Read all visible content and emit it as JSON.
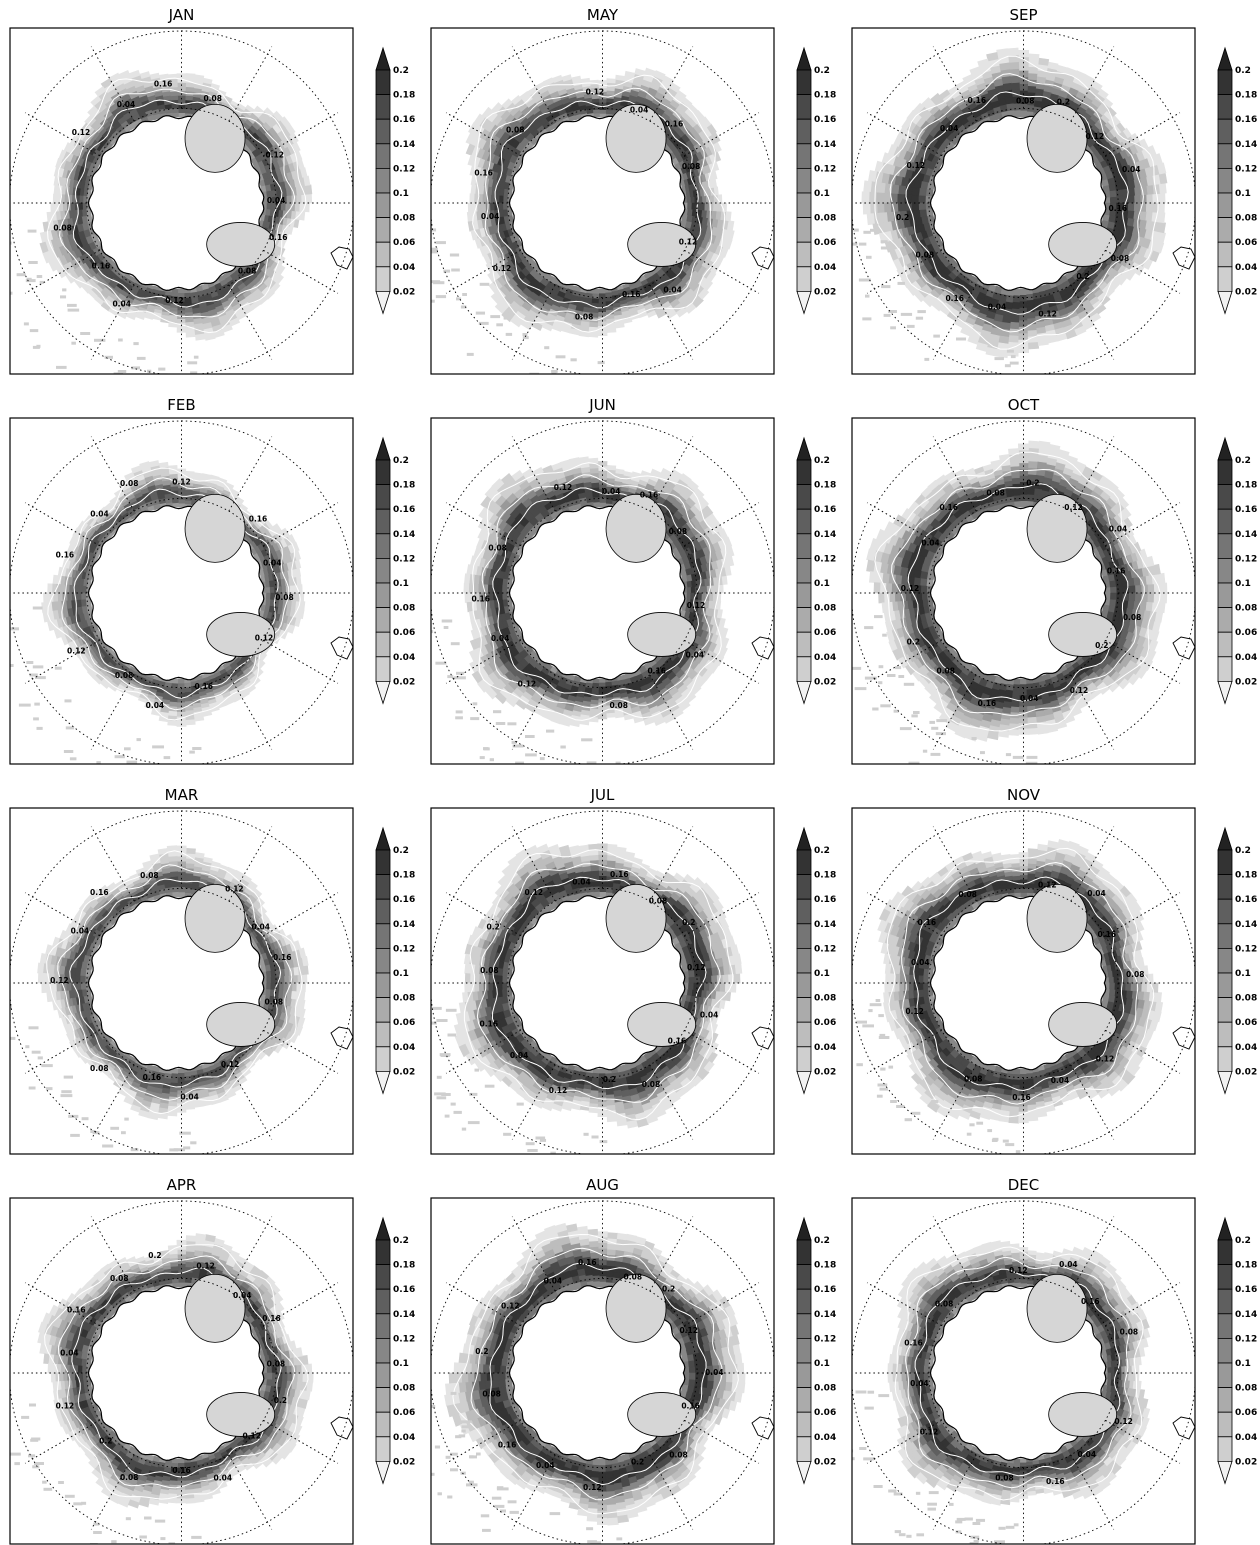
{
  "chart_data": {
    "type": "heatmap",
    "projection": "south polar stereographic",
    "colorbar": {
      "levels": [
        "0.02",
        "0.04",
        "0.06",
        "0.08",
        "0.1",
        "0.12",
        "0.14",
        "0.16",
        "0.18",
        "0.2"
      ],
      "extend": "both",
      "colors": [
        "#e4e4e4",
        "#cfcfcf",
        "#bdbdbd",
        "#ababab",
        "#999999",
        "#878787",
        "#757575",
        "#5f5f5f",
        "#494949",
        "#333333"
      ]
    },
    "grid": true,
    "panels": [
      {
        "title": "JAN",
        "extent": 0.9,
        "labels": [
          "0.04",
          "0.08",
          "0.12",
          "0.16"
        ]
      },
      {
        "title": "FEB",
        "extent": 0.74,
        "labels": [
          "0.04",
          "0.12",
          "0.16",
          "0.08"
        ]
      },
      {
        "title": "MAR",
        "extent": 0.82,
        "labels": [
          "0.04",
          "0.08",
          "0.12",
          "0.16"
        ]
      },
      {
        "title": "APR",
        "extent": 0.92,
        "labels": [
          "0.04",
          "0.08",
          "0.12",
          "0.16",
          "0.2"
        ]
      },
      {
        "title": "MAY",
        "extent": 1.0,
        "labels": [
          "0.04",
          "0.08",
          "0.12",
          "0.16"
        ]
      },
      {
        "title": "JUN",
        "extent": 1.06,
        "labels": [
          "0.04",
          "0.08",
          "0.12",
          "0.16"
        ]
      },
      {
        "title": "JUL",
        "extent": 1.1,
        "labels": [
          "0.04",
          "0.08",
          "0.12",
          "0.16",
          "0.2"
        ]
      },
      {
        "title": "AUG",
        "extent": 1.14,
        "labels": [
          "0.04",
          "0.08",
          "0.12",
          "0.16",
          "0.2"
        ]
      },
      {
        "title": "SEP",
        "extent": 1.18,
        "labels": [
          "0.04",
          "0.08",
          "0.12",
          "0.16",
          "0.2"
        ]
      },
      {
        "title": "OCT",
        "extent": 1.16,
        "labels": [
          "0.04",
          "0.08",
          "0.12",
          "0.16",
          "0.2"
        ]
      },
      {
        "title": "NOV",
        "extent": 1.12,
        "labels": [
          "0.04",
          "0.08",
          "0.12",
          "0.16"
        ]
      },
      {
        "title": "DEC",
        "extent": 1.0,
        "labels": [
          "0.04",
          "0.08",
          "0.12",
          "0.16"
        ]
      }
    ]
  }
}
